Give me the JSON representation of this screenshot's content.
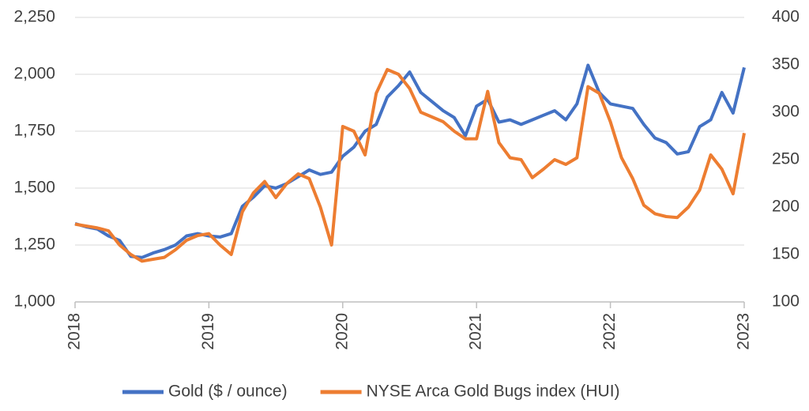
{
  "chart_data": {
    "type": "line",
    "x": [
      2018,
      2018.083,
      2018.167,
      2018.25,
      2018.333,
      2018.417,
      2018.5,
      2018.583,
      2018.667,
      2018.75,
      2018.833,
      2018.917,
      2019,
      2019.083,
      2019.167,
      2019.25,
      2019.333,
      2019.417,
      2019.5,
      2019.583,
      2019.667,
      2019.75,
      2019.833,
      2019.917,
      2020,
      2020.083,
      2020.167,
      2020.25,
      2020.333,
      2020.417,
      2020.5,
      2020.583,
      2020.667,
      2020.75,
      2020.833,
      2020.917,
      2021,
      2021.083,
      2021.167,
      2021.25,
      2021.333,
      2021.417,
      2021.5,
      2021.583,
      2021.667,
      2021.75,
      2021.833,
      2021.917,
      2022,
      2022.083,
      2022.167,
      2022.25,
      2022.333,
      2022.417,
      2022.5,
      2022.583,
      2022.667,
      2022.75,
      2022.833,
      2022.917,
      2023
    ],
    "series": [
      {
        "name": "Gold ($ / ounce)",
        "color": "#4472c4",
        "axis": "y",
        "values": [
          1344,
          1330,
          1320,
          1290,
          1270,
          1200,
          1195,
          1215,
          1230,
          1250,
          1290,
          1300,
          1290,
          1285,
          1300,
          1420,
          1460,
          1510,
          1500,
          1520,
          1550,
          1580,
          1560,
          1570,
          1640,
          1680,
          1750,
          1780,
          1900,
          1950,
          2010,
          1920,
          1880,
          1840,
          1810,
          1730,
          1860,
          1890,
          1790,
          1800,
          1780,
          1800,
          1820,
          1840,
          1800,
          1870,
          2040,
          1920,
          1870,
          1860,
          1850,
          1780,
          1720,
          1700,
          1650,
          1660,
          1770,
          1800,
          1920,
          1830,
          2030
        ]
      },
      {
        "name": "NYSE Arca Gold Bugs index (HUI)",
        "color": "#ed7d31",
        "axis": "y2",
        "values": [
          182,
          180,
          178,
          175,
          160,
          150,
          143,
          145,
          147,
          155,
          165,
          170,
          172,
          160,
          150,
          195,
          215,
          227,
          210,
          225,
          235,
          230,
          200,
          160,
          285,
          280,
          255,
          320,
          345,
          340,
          325,
          300,
          295,
          290,
          280,
          272,
          272,
          322,
          268,
          252,
          250,
          231,
          240,
          250,
          245,
          252,
          327,
          320,
          290,
          252,
          230,
          202,
          193,
          190,
          189,
          200,
          218,
          255,
          240,
          214,
          278
        ]
      }
    ],
    "xlim": [
      2018,
      2023
    ],
    "xticks": [
      2018,
      2019,
      2020,
      2021,
      2022,
      2023
    ],
    "ylim": [
      1000,
      2250
    ],
    "yticks": [
      {
        "value": 1000,
        "label": "1,000"
      },
      {
        "value": 1250,
        "label": "1,250"
      },
      {
        "value": 1500,
        "label": "1,500"
      },
      {
        "value": 1750,
        "label": "1,750"
      },
      {
        "value": 2000,
        "label": "2,000"
      },
      {
        "value": 2250,
        "label": "2,250"
      }
    ],
    "y2lim": [
      100,
      400
    ],
    "y2ticks": [
      100,
      150,
      200,
      250,
      300,
      350,
      400
    ],
    "grid": true,
    "legend": "bottom"
  }
}
